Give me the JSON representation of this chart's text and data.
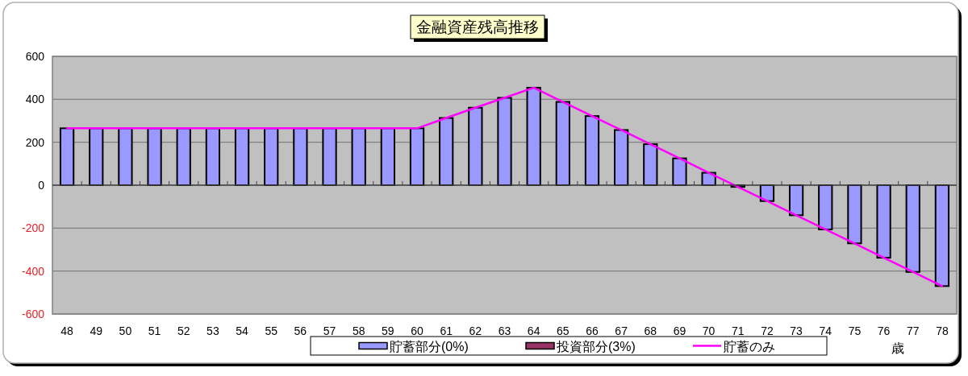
{
  "chart_data": {
    "type": "bar",
    "title": "金融資産残高推移",
    "xlabel": "歳",
    "categories": [
      "48",
      "49",
      "50",
      "51",
      "52",
      "53",
      "54",
      "55",
      "56",
      "57",
      "58",
      "59",
      "60",
      "61",
      "62",
      "63",
      "64",
      "65",
      "66",
      "67",
      "68",
      "69",
      "70",
      "71",
      "72",
      "73",
      "74",
      "75",
      "76",
      "77",
      "78"
    ],
    "stacked": true,
    "series": [
      {
        "name": "貯蓄部分(0%)",
        "color": "#9999ff",
        "values": [
          265,
          265,
          265,
          265,
          265,
          265,
          265,
          265,
          265,
          265,
          265,
          265,
          265,
          313,
          361,
          407,
          454,
          388,
          322,
          257,
          191,
          125,
          58,
          -8,
          -74,
          -140,
          -206,
          -271,
          -338,
          -404,
          -470
        ]
      },
      {
        "name": "投資部分(3%)",
        "color": "#993366",
        "values": [
          null,
          null,
          null,
          null,
          null,
          null,
          null,
          null,
          null,
          null,
          null,
          null,
          null,
          null,
          null,
          null,
          null,
          null,
          null,
          null,
          null,
          null,
          null,
          null,
          null,
          null,
          null,
          null,
          null,
          null,
          null
        ]
      },
      {
        "name": "貯蓄のみ",
        "type": "line",
        "color": "#ff00ff",
        "values": [
          265,
          265,
          265,
          265,
          265,
          265,
          265,
          265,
          265,
          265,
          265,
          265,
          265,
          313,
          361,
          407,
          454,
          388,
          322,
          257,
          191,
          125,
          58,
          -8,
          -74,
          -140,
          -206,
          -271,
          -338,
          -404,
          -470
        ]
      }
    ],
    "ylim": [
      -600,
      600
    ],
    "yticks": [
      -600,
      -400,
      -200,
      0,
      200,
      400,
      600
    ],
    "grid": "y",
    "legend": "bottom"
  }
}
